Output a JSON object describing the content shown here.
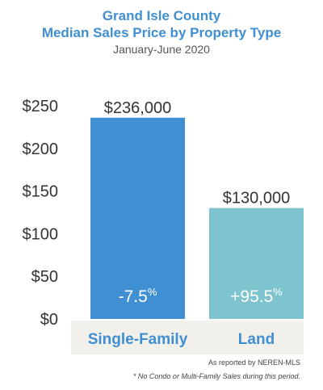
{
  "chart_data": {
    "type": "bar",
    "title_line1": "Grand Isle County",
    "title_line2": "Median Sales Price by Property Type",
    "subtitle": "January-June 2020",
    "xlabel": "",
    "ylabel": "",
    "ylim": [
      0,
      250
    ],
    "y_ticks": [
      "$0",
      "$50",
      "$100",
      "$150",
      "$200",
      "$250"
    ],
    "y_tick_values": [
      0,
      50,
      100,
      150,
      200,
      250
    ],
    "categories": [
      "Single-Family",
      "Land"
    ],
    "values": [
      236,
      130
    ],
    "value_labels": [
      "$236,000",
      "$130,000"
    ],
    "change_labels": [
      "-7.5",
      "+95.5"
    ],
    "change_unit": "%",
    "grid": false,
    "colors": {
      "bars": [
        "#418fd3",
        "#7ec4cf"
      ],
      "title": "#3f8fd2",
      "category_text": "#3f8fd2",
      "category_band": "#f2f0ea"
    }
  },
  "footer": {
    "source": "As reported by NEREN-MLS",
    "note": "* No Condo or Multi-Family Sales during this period."
  }
}
